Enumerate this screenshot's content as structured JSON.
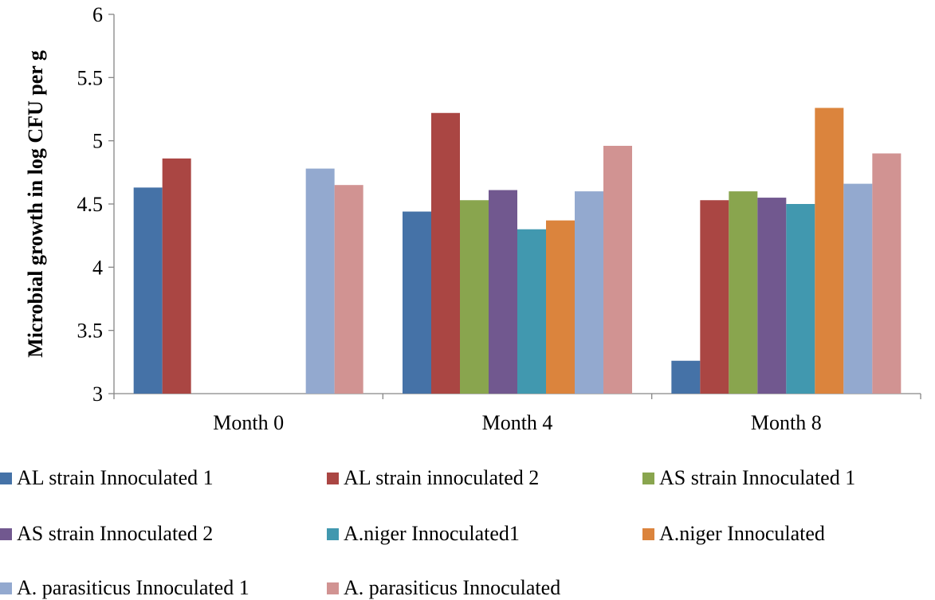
{
  "chart_data": {
    "type": "bar",
    "categories": [
      "Month 0",
      "Month 4",
      "Month 8"
    ],
    "ylabel": "Microbial growth in log CFU per g",
    "xlabel": "",
    "ylim": [
      3,
      6
    ],
    "yticks": [
      "3",
      "3.5",
      "4",
      "4.5",
      "5",
      "5.5",
      "6"
    ],
    "grid": false,
    "legend_position": "bottom",
    "series": [
      {
        "name": "AL strain Innoculated 1",
        "color": "#4572A7",
        "values": [
          4.63,
          4.44,
          3.26
        ]
      },
      {
        "name": "AL strain innoculated 2",
        "color": "#AA4643",
        "values": [
          4.86,
          5.22,
          4.53
        ]
      },
      {
        "name": "AS strain Innoculated 1",
        "color": "#89A54E",
        "values": [
          null,
          4.53,
          4.6
        ]
      },
      {
        "name": "AS strain Innoculated 2",
        "color": "#71588F",
        "values": [
          null,
          4.61,
          4.55
        ]
      },
      {
        "name": "A.niger Innoculated1",
        "color": "#4198AF",
        "values": [
          null,
          4.3,
          4.5
        ]
      },
      {
        "name": "A.niger Innoculated",
        "color": "#DB843D",
        "values": [
          null,
          4.37,
          5.26
        ]
      },
      {
        "name": "A. parasiticus Innoculated 1",
        "color": "#93A9CF",
        "values": [
          4.78,
          4.6,
          4.66
        ]
      },
      {
        "name": "A. parasiticus Innoculated",
        "color": "#D19392",
        "values": [
          4.65,
          4.96,
          4.9
        ]
      }
    ]
  }
}
